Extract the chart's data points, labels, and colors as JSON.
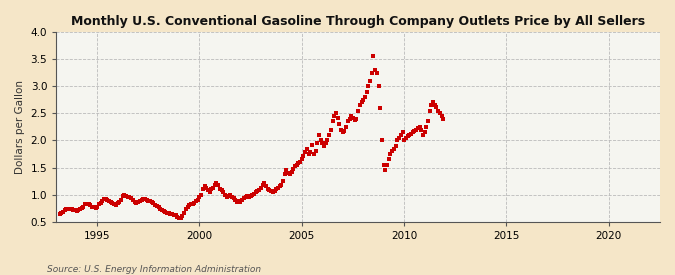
{
  "title": "Monthly U.S. Conventional Gasoline Through Company Outlets Price by All Sellers",
  "ylabel": "Dollars per Gallon",
  "source": "Source: U.S. Energy Information Administration",
  "figure_bg": "#f5e6c8",
  "axes_bg": "#f5f5f0",
  "dot_color": "#cc0000",
  "xlim": [
    1993.0,
    2022.5
  ],
  "ylim": [
    0.5,
    4.0
  ],
  "yticks": [
    0.5,
    1.0,
    1.5,
    2.0,
    2.5,
    3.0,
    3.5,
    4.0
  ],
  "xticks": [
    1995,
    2000,
    2005,
    2010,
    2015,
    2020
  ],
  "data": [
    [
      1993.17,
      0.65
    ],
    [
      1993.25,
      0.67
    ],
    [
      1993.33,
      0.68
    ],
    [
      1993.42,
      0.72
    ],
    [
      1993.5,
      0.74
    ],
    [
      1993.58,
      0.73
    ],
    [
      1993.67,
      0.74
    ],
    [
      1993.75,
      0.73
    ],
    [
      1993.83,
      0.72
    ],
    [
      1993.92,
      0.71
    ],
    [
      1994.0,
      0.7
    ],
    [
      1994.08,
      0.72
    ],
    [
      1994.17,
      0.73
    ],
    [
      1994.25,
      0.75
    ],
    [
      1994.33,
      0.78
    ],
    [
      1994.42,
      0.82
    ],
    [
      1994.5,
      0.83
    ],
    [
      1994.58,
      0.82
    ],
    [
      1994.67,
      0.81
    ],
    [
      1994.75,
      0.78
    ],
    [
      1994.83,
      0.77
    ],
    [
      1994.92,
      0.76
    ],
    [
      1995.0,
      0.78
    ],
    [
      1995.08,
      0.82
    ],
    [
      1995.17,
      0.84
    ],
    [
      1995.25,
      0.89
    ],
    [
      1995.33,
      0.91
    ],
    [
      1995.42,
      0.92
    ],
    [
      1995.5,
      0.9
    ],
    [
      1995.58,
      0.88
    ],
    [
      1995.67,
      0.87
    ],
    [
      1995.75,
      0.85
    ],
    [
      1995.83,
      0.82
    ],
    [
      1995.92,
      0.8
    ],
    [
      1996.0,
      0.84
    ],
    [
      1996.08,
      0.87
    ],
    [
      1996.17,
      0.9
    ],
    [
      1996.25,
      0.97
    ],
    [
      1996.33,
      1.0
    ],
    [
      1996.42,
      0.98
    ],
    [
      1996.5,
      0.96
    ],
    [
      1996.58,
      0.95
    ],
    [
      1996.67,
      0.94
    ],
    [
      1996.75,
      0.9
    ],
    [
      1996.83,
      0.87
    ],
    [
      1996.92,
      0.85
    ],
    [
      1997.0,
      0.87
    ],
    [
      1997.08,
      0.89
    ],
    [
      1997.17,
      0.9
    ],
    [
      1997.25,
      0.91
    ],
    [
      1997.33,
      0.92
    ],
    [
      1997.42,
      0.9
    ],
    [
      1997.5,
      0.89
    ],
    [
      1997.58,
      0.88
    ],
    [
      1997.67,
      0.86
    ],
    [
      1997.75,
      0.84
    ],
    [
      1997.83,
      0.81
    ],
    [
      1997.92,
      0.79
    ],
    [
      1998.0,
      0.77
    ],
    [
      1998.08,
      0.74
    ],
    [
      1998.17,
      0.72
    ],
    [
      1998.25,
      0.7
    ],
    [
      1998.33,
      0.68
    ],
    [
      1998.42,
      0.67
    ],
    [
      1998.5,
      0.66
    ],
    [
      1998.58,
      0.65
    ],
    [
      1998.67,
      0.64
    ],
    [
      1998.75,
      0.63
    ],
    [
      1998.83,
      0.62
    ],
    [
      1998.92,
      0.58
    ],
    [
      1999.0,
      0.56
    ],
    [
      1999.08,
      0.57
    ],
    [
      1999.17,
      0.6
    ],
    [
      1999.25,
      0.67
    ],
    [
      1999.33,
      0.73
    ],
    [
      1999.42,
      0.78
    ],
    [
      1999.5,
      0.8
    ],
    [
      1999.58,
      0.82
    ],
    [
      1999.67,
      0.83
    ],
    [
      1999.75,
      0.85
    ],
    [
      1999.83,
      0.88
    ],
    [
      1999.92,
      0.9
    ],
    [
      2000.0,
      0.95
    ],
    [
      2000.08,
      1.0
    ],
    [
      2000.17,
      1.1
    ],
    [
      2000.25,
      1.15
    ],
    [
      2000.33,
      1.12
    ],
    [
      2000.42,
      1.08
    ],
    [
      2000.5,
      1.05
    ],
    [
      2000.58,
      1.1
    ],
    [
      2000.67,
      1.12
    ],
    [
      2000.75,
      1.18
    ],
    [
      2000.83,
      1.22
    ],
    [
      2000.92,
      1.17
    ],
    [
      2001.0,
      1.11
    ],
    [
      2001.08,
      1.08
    ],
    [
      2001.17,
      1.05
    ],
    [
      2001.25,
      1.0
    ],
    [
      2001.33,
      0.95
    ],
    [
      2001.42,
      0.97
    ],
    [
      2001.5,
      0.99
    ],
    [
      2001.58,
      0.96
    ],
    [
      2001.67,
      0.93
    ],
    [
      2001.75,
      0.9
    ],
    [
      2001.83,
      0.87
    ],
    [
      2001.92,
      0.88
    ],
    [
      2002.0,
      0.87
    ],
    [
      2002.08,
      0.9
    ],
    [
      2002.17,
      0.93
    ],
    [
      2002.25,
      0.96
    ],
    [
      2002.33,
      0.97
    ],
    [
      2002.42,
      0.96
    ],
    [
      2002.5,
      0.98
    ],
    [
      2002.58,
      1.0
    ],
    [
      2002.67,
      1.02
    ],
    [
      2002.75,
      1.04
    ],
    [
      2002.83,
      1.06
    ],
    [
      2002.92,
      1.08
    ],
    [
      2003.0,
      1.12
    ],
    [
      2003.08,
      1.18
    ],
    [
      2003.17,
      1.22
    ],
    [
      2003.25,
      1.15
    ],
    [
      2003.33,
      1.1
    ],
    [
      2003.42,
      1.08
    ],
    [
      2003.5,
      1.06
    ],
    [
      2003.58,
      1.05
    ],
    [
      2003.67,
      1.07
    ],
    [
      2003.75,
      1.1
    ],
    [
      2003.83,
      1.13
    ],
    [
      2003.92,
      1.15
    ],
    [
      2004.0,
      1.18
    ],
    [
      2004.08,
      1.25
    ],
    [
      2004.17,
      1.38
    ],
    [
      2004.25,
      1.45
    ],
    [
      2004.33,
      1.4
    ],
    [
      2004.42,
      1.38
    ],
    [
      2004.5,
      1.42
    ],
    [
      2004.58,
      1.48
    ],
    [
      2004.67,
      1.52
    ],
    [
      2004.75,
      1.55
    ],
    [
      2004.83,
      1.58
    ],
    [
      2004.92,
      1.6
    ],
    [
      2005.0,
      1.65
    ],
    [
      2005.08,
      1.72
    ],
    [
      2005.17,
      1.78
    ],
    [
      2005.25,
      1.85
    ],
    [
      2005.33,
      1.75
    ],
    [
      2005.42,
      1.78
    ],
    [
      2005.5,
      1.92
    ],
    [
      2005.58,
      1.75
    ],
    [
      2005.67,
      1.8
    ],
    [
      2005.75,
      1.95
    ],
    [
      2005.83,
      2.1
    ],
    [
      2005.92,
      2.0
    ],
    [
      2006.0,
      1.95
    ],
    [
      2006.08,
      1.9
    ],
    [
      2006.17,
      1.95
    ],
    [
      2006.25,
      2.0
    ],
    [
      2006.33,
      2.1
    ],
    [
      2006.42,
      2.2
    ],
    [
      2006.5,
      2.35
    ],
    [
      2006.58,
      2.45
    ],
    [
      2006.67,
      2.5
    ],
    [
      2006.75,
      2.42
    ],
    [
      2006.83,
      2.3
    ],
    [
      2006.92,
      2.2
    ],
    [
      2007.0,
      2.15
    ],
    [
      2007.08,
      2.18
    ],
    [
      2007.17,
      2.25
    ],
    [
      2007.25,
      2.35
    ],
    [
      2007.33,
      2.4
    ],
    [
      2007.42,
      2.45
    ],
    [
      2007.5,
      2.42
    ],
    [
      2007.58,
      2.38
    ],
    [
      2007.67,
      2.4
    ],
    [
      2007.75,
      2.55
    ],
    [
      2007.83,
      2.65
    ],
    [
      2007.92,
      2.7
    ],
    [
      2008.0,
      2.75
    ],
    [
      2008.08,
      2.8
    ],
    [
      2008.17,
      2.9
    ],
    [
      2008.25,
      3.0
    ],
    [
      2008.33,
      3.1
    ],
    [
      2008.42,
      3.25
    ],
    [
      2008.5,
      3.55
    ],
    [
      2008.58,
      3.3
    ],
    [
      2008.67,
      3.25
    ],
    [
      2008.75,
      3.0
    ],
    [
      2008.83,
      2.6
    ],
    [
      2008.92,
      2.0
    ],
    [
      2009.0,
      1.55
    ],
    [
      2009.08,
      1.45
    ],
    [
      2009.17,
      1.55
    ],
    [
      2009.25,
      1.65
    ],
    [
      2009.33,
      1.75
    ],
    [
      2009.42,
      1.8
    ],
    [
      2009.5,
      1.85
    ],
    [
      2009.58,
      1.9
    ],
    [
      2009.67,
      2.0
    ],
    [
      2009.75,
      2.05
    ],
    [
      2009.83,
      2.1
    ],
    [
      2009.92,
      2.15
    ],
    [
      2010.0,
      2.0
    ],
    [
      2010.08,
      2.05
    ],
    [
      2010.17,
      2.08
    ],
    [
      2010.25,
      2.1
    ],
    [
      2010.33,
      2.12
    ],
    [
      2010.42,
      2.15
    ],
    [
      2010.5,
      2.18
    ],
    [
      2010.58,
      2.2
    ],
    [
      2010.67,
      2.22
    ],
    [
      2010.75,
      2.25
    ],
    [
      2010.83,
      2.2
    ],
    [
      2010.92,
      2.1
    ],
    [
      2011.0,
      2.15
    ],
    [
      2011.08,
      2.25
    ],
    [
      2011.17,
      2.35
    ],
    [
      2011.25,
      2.55
    ],
    [
      2011.33,
      2.65
    ],
    [
      2011.42,
      2.7
    ],
    [
      2011.5,
      2.65
    ],
    [
      2011.58,
      2.62
    ],
    [
      2011.67,
      2.55
    ],
    [
      2011.75,
      2.5
    ],
    [
      2011.83,
      2.45
    ],
    [
      2011.92,
      2.4
    ]
  ]
}
